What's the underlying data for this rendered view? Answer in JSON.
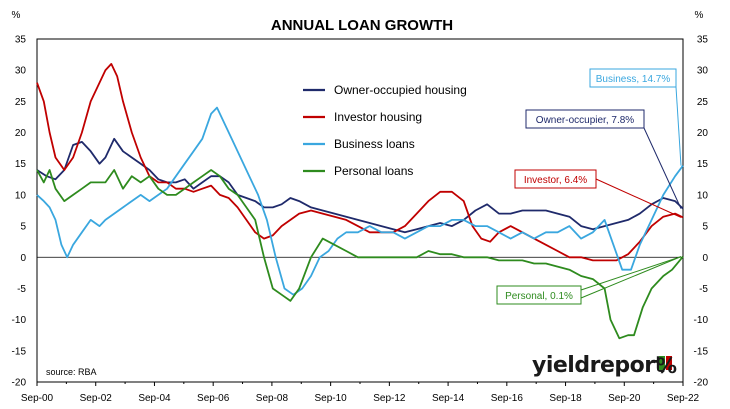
{
  "chart_data": {
    "type": "line",
    "title": "ANNUAL LOAN GROWTH",
    "y_unit_left": "%",
    "y_unit_right": "%",
    "ylim": [
      -20,
      35
    ],
    "yticks": [
      35,
      30,
      25,
      20,
      15,
      10,
      5,
      0,
      -5,
      -10,
      -15,
      -20
    ],
    "xlim": [
      2000.67,
      2022.67
    ],
    "x_tick_labels": [
      "Sep-00",
      "Sep-02",
      "Sep-04",
      "Sep-06",
      "Sep-08",
      "Sep-10",
      "Sep-12",
      "Sep-14",
      "Sep-16",
      "Sep-18",
      "Sep-20",
      "Sep-22"
    ],
    "x_tick_values": [
      2000.67,
      2002.67,
      2004.67,
      2006.67,
      2008.67,
      2010.67,
      2012.67,
      2014.67,
      2016.67,
      2018.67,
      2020.67,
      2022.67
    ],
    "grid": false,
    "legend_position": "top-center",
    "source": "source: RBA",
    "series": [
      {
        "name": "Owner-occupied housing",
        "color": "#1f2a6b",
        "points": [
          [
            2000.67,
            14
          ],
          [
            2001.0,
            13
          ],
          [
            2001.3,
            12.5
          ],
          [
            2001.6,
            14
          ],
          [
            2001.9,
            18
          ],
          [
            2002.2,
            18.5
          ],
          [
            2002.5,
            17
          ],
          [
            2002.8,
            15
          ],
          [
            2003.0,
            16
          ],
          [
            2003.3,
            19
          ],
          [
            2003.6,
            17
          ],
          [
            2003.9,
            16
          ],
          [
            2004.2,
            15
          ],
          [
            2004.5,
            14
          ],
          [
            2004.8,
            12.5
          ],
          [
            2005.1,
            12
          ],
          [
            2005.4,
            12
          ],
          [
            2005.7,
            12.5
          ],
          [
            2006.0,
            11
          ],
          [
            2006.3,
            12
          ],
          [
            2006.6,
            13
          ],
          [
            2006.9,
            13
          ],
          [
            2007.2,
            12
          ],
          [
            2007.5,
            10
          ],
          [
            2007.8,
            9.5
          ],
          [
            2008.1,
            9
          ],
          [
            2008.4,
            8
          ],
          [
            2008.7,
            8
          ],
          [
            2009.0,
            8.5
          ],
          [
            2009.3,
            9.5
          ],
          [
            2009.6,
            9
          ],
          [
            2010.0,
            8
          ],
          [
            2010.4,
            7.5
          ],
          [
            2010.8,
            7
          ],
          [
            2011.2,
            6.5
          ],
          [
            2011.6,
            6
          ],
          [
            2012.0,
            5.5
          ],
          [
            2012.4,
            5
          ],
          [
            2012.8,
            4.5
          ],
          [
            2013.2,
            4
          ],
          [
            2013.6,
            4.5
          ],
          [
            2014.0,
            5
          ],
          [
            2014.4,
            5.5
          ],
          [
            2014.8,
            5
          ],
          [
            2015.2,
            6
          ],
          [
            2015.6,
            7.5
          ],
          [
            2016.0,
            8.5
          ],
          [
            2016.4,
            7
          ],
          [
            2016.8,
            7
          ],
          [
            2017.2,
            7.5
          ],
          [
            2017.6,
            7.5
          ],
          [
            2018.0,
            7.5
          ],
          [
            2018.4,
            7
          ],
          [
            2018.8,
            6.5
          ],
          [
            2019.2,
            5
          ],
          [
            2019.6,
            4.5
          ],
          [
            2020.0,
            5
          ],
          [
            2020.4,
            5.5
          ],
          [
            2020.8,
            6
          ],
          [
            2021.2,
            7
          ],
          [
            2021.6,
            8.5
          ],
          [
            2022.0,
            9.5
          ],
          [
            2022.4,
            9
          ],
          [
            2022.67,
            7.8
          ]
        ]
      },
      {
        "name": "Investor housing",
        "color": "#c00000",
        "points": [
          [
            2000.67,
            28
          ],
          [
            2000.9,
            25
          ],
          [
            2001.1,
            20
          ],
          [
            2001.3,
            16
          ],
          [
            2001.6,
            14
          ],
          [
            2001.9,
            16
          ],
          [
            2002.2,
            20
          ],
          [
            2002.5,
            25
          ],
          [
            2002.8,
            28
          ],
          [
            2003.0,
            30
          ],
          [
            2003.2,
            31
          ],
          [
            2003.4,
            29
          ],
          [
            2003.6,
            25
          ],
          [
            2003.9,
            20
          ],
          [
            2004.2,
            16
          ],
          [
            2004.5,
            13
          ],
          [
            2004.8,
            12
          ],
          [
            2005.1,
            12
          ],
          [
            2005.4,
            11
          ],
          [
            2005.7,
            11
          ],
          [
            2006.0,
            10.5
          ],
          [
            2006.3,
            11
          ],
          [
            2006.6,
            11.5
          ],
          [
            2006.9,
            10
          ],
          [
            2007.2,
            9.5
          ],
          [
            2007.5,
            8
          ],
          [
            2007.8,
            6
          ],
          [
            2008.1,
            4
          ],
          [
            2008.4,
            3
          ],
          [
            2008.7,
            3.5
          ],
          [
            2009.0,
            5
          ],
          [
            2009.3,
            6
          ],
          [
            2009.6,
            7
          ],
          [
            2010.0,
            7.5
          ],
          [
            2010.4,
            7
          ],
          [
            2010.8,
            6.5
          ],
          [
            2011.2,
            6
          ],
          [
            2011.6,
            5
          ],
          [
            2012.0,
            4
          ],
          [
            2012.4,
            4
          ],
          [
            2012.8,
            4
          ],
          [
            2013.2,
            5
          ],
          [
            2013.6,
            7
          ],
          [
            2014.0,
            9
          ],
          [
            2014.4,
            10.5
          ],
          [
            2014.8,
            10.5
          ],
          [
            2015.2,
            9
          ],
          [
            2015.5,
            5
          ],
          [
            2015.8,
            3
          ],
          [
            2016.1,
            2.5
          ],
          [
            2016.4,
            4
          ],
          [
            2016.8,
            5
          ],
          [
            2017.2,
            4
          ],
          [
            2017.6,
            3
          ],
          [
            2018.0,
            2
          ],
          [
            2018.4,
            1
          ],
          [
            2018.8,
            0
          ],
          [
            2019.2,
            0
          ],
          [
            2019.6,
            -0.5
          ],
          [
            2020.0,
            -0.5
          ],
          [
            2020.4,
            -0.5
          ],
          [
            2020.8,
            0.5
          ],
          [
            2021.2,
            2.5
          ],
          [
            2021.6,
            5
          ],
          [
            2022.0,
            6.5
          ],
          [
            2022.4,
            7
          ],
          [
            2022.67,
            6.4
          ]
        ]
      },
      {
        "name": "Business loans",
        "color": "#3aa7df",
        "points": [
          [
            2000.67,
            10
          ],
          [
            2000.9,
            9
          ],
          [
            2001.1,
            8
          ],
          [
            2001.3,
            6
          ],
          [
            2001.5,
            2
          ],
          [
            2001.7,
            0
          ],
          [
            2001.9,
            2
          ],
          [
            2002.2,
            4
          ],
          [
            2002.5,
            6
          ],
          [
            2002.8,
            5
          ],
          [
            2003.0,
            6
          ],
          [
            2003.3,
            7
          ],
          [
            2003.6,
            8
          ],
          [
            2003.9,
            9
          ],
          [
            2004.2,
            10
          ],
          [
            2004.5,
            9
          ],
          [
            2004.8,
            10
          ],
          [
            2005.1,
            11
          ],
          [
            2005.4,
            13
          ],
          [
            2005.7,
            15
          ],
          [
            2006.0,
            17
          ],
          [
            2006.3,
            19
          ],
          [
            2006.6,
            23
          ],
          [
            2006.8,
            24
          ],
          [
            2007.0,
            22
          ],
          [
            2007.3,
            19
          ],
          [
            2007.6,
            16
          ],
          [
            2007.9,
            13
          ],
          [
            2008.2,
            10
          ],
          [
            2008.5,
            6
          ],
          [
            2008.8,
            0
          ],
          [
            2009.1,
            -5
          ],
          [
            2009.4,
            -6
          ],
          [
            2009.7,
            -5
          ],
          [
            2010.0,
            -3
          ],
          [
            2010.3,
            0
          ],
          [
            2010.6,
            1
          ],
          [
            2010.9,
            3
          ],
          [
            2011.2,
            4
          ],
          [
            2011.6,
            4
          ],
          [
            2012.0,
            5
          ],
          [
            2012.4,
            4
          ],
          [
            2012.8,
            4
          ],
          [
            2013.2,
            3
          ],
          [
            2013.6,
            4
          ],
          [
            2014.0,
            5
          ],
          [
            2014.4,
            5
          ],
          [
            2014.8,
            6
          ],
          [
            2015.2,
            6
          ],
          [
            2015.6,
            5
          ],
          [
            2016.0,
            5
          ],
          [
            2016.4,
            4
          ],
          [
            2016.8,
            3
          ],
          [
            2017.2,
            4
          ],
          [
            2017.6,
            3
          ],
          [
            2018.0,
            4
          ],
          [
            2018.4,
            4
          ],
          [
            2018.8,
            5
          ],
          [
            2019.2,
            3
          ],
          [
            2019.6,
            4
          ],
          [
            2020.0,
            6
          ],
          [
            2020.3,
            2
          ],
          [
            2020.6,
            -2
          ],
          [
            2020.9,
            -2
          ],
          [
            2021.2,
            2
          ],
          [
            2021.6,
            6
          ],
          [
            2022.0,
            10
          ],
          [
            2022.4,
            13
          ],
          [
            2022.67,
            14.7
          ]
        ]
      },
      {
        "name": "Personal loans",
        "color": "#2e8b1e",
        "points": [
          [
            2000.67,
            14
          ],
          [
            2000.9,
            12
          ],
          [
            2001.1,
            14
          ],
          [
            2001.3,
            11
          ],
          [
            2001.6,
            9
          ],
          [
            2001.9,
            10
          ],
          [
            2002.2,
            11
          ],
          [
            2002.5,
            12
          ],
          [
            2002.8,
            12
          ],
          [
            2003.0,
            12
          ],
          [
            2003.3,
            14
          ],
          [
            2003.6,
            11
          ],
          [
            2003.9,
            13
          ],
          [
            2004.2,
            12
          ],
          [
            2004.5,
            13
          ],
          [
            2004.8,
            11
          ],
          [
            2005.1,
            10
          ],
          [
            2005.4,
            10
          ],
          [
            2005.7,
            11
          ],
          [
            2006.0,
            12
          ],
          [
            2006.3,
            13
          ],
          [
            2006.6,
            14
          ],
          [
            2006.9,
            13
          ],
          [
            2007.2,
            11
          ],
          [
            2007.5,
            10
          ],
          [
            2007.8,
            8
          ],
          [
            2008.1,
            6
          ],
          [
            2008.4,
            0
          ],
          [
            2008.7,
            -5
          ],
          [
            2009.0,
            -6
          ],
          [
            2009.3,
            -7
          ],
          [
            2009.6,
            -5
          ],
          [
            2010.0,
            0
          ],
          [
            2010.4,
            3
          ],
          [
            2010.8,
            2
          ],
          [
            2011.2,
            1
          ],
          [
            2011.6,
            0
          ],
          [
            2012.0,
            0
          ],
          [
            2012.4,
            0
          ],
          [
            2012.8,
            0
          ],
          [
            2013.2,
            0
          ],
          [
            2013.6,
            0
          ],
          [
            2014.0,
            1
          ],
          [
            2014.4,
            0.5
          ],
          [
            2014.8,
            0.5
          ],
          [
            2015.2,
            0
          ],
          [
            2015.6,
            0
          ],
          [
            2016.0,
            0
          ],
          [
            2016.4,
            -0.5
          ],
          [
            2016.8,
            -0.5
          ],
          [
            2017.2,
            -0.5
          ],
          [
            2017.6,
            -1
          ],
          [
            2018.0,
            -1
          ],
          [
            2018.4,
            -1.5
          ],
          [
            2018.8,
            -2
          ],
          [
            2019.2,
            -3
          ],
          [
            2019.6,
            -3.5
          ],
          [
            2020.0,
            -5
          ],
          [
            2020.2,
            -10
          ],
          [
            2020.5,
            -13
          ],
          [
            2020.8,
            -12.5
          ],
          [
            2021.0,
            -12.5
          ],
          [
            2021.3,
            -8
          ],
          [
            2021.6,
            -5
          ],
          [
            2022.0,
            -3
          ],
          [
            2022.3,
            -2
          ],
          [
            2022.67,
            0.1
          ]
        ]
      }
    ]
  },
  "legend": {
    "items": [
      {
        "label": "Owner-occupied housing",
        "color": "#1f2a6b"
      },
      {
        "label": "Investor housing",
        "color": "#c00000"
      },
      {
        "label": "Business loans",
        "color": "#3aa7df"
      },
      {
        "label": "Personal loans",
        "color": "#2e8b1e"
      }
    ]
  },
  "callouts": [
    {
      "label": "Business, 14.7%",
      "color": "#3aa7df",
      "value": 14.7
    },
    {
      "label": "Owner-occupier, 7.8%",
      "color": "#1f2a6b",
      "value": 7.8
    },
    {
      "label": "Investor, 6.4%",
      "color": "#c00000",
      "value": 6.4
    },
    {
      "label": "Personal, 0.1%",
      "color": "#2e8b1e",
      "value": 0.1
    }
  ],
  "logo": {
    "text": "yieldreport",
    "percent_symbol": "%",
    "colors": {
      "green": "#2e8b1e",
      "red": "#c00000"
    }
  }
}
